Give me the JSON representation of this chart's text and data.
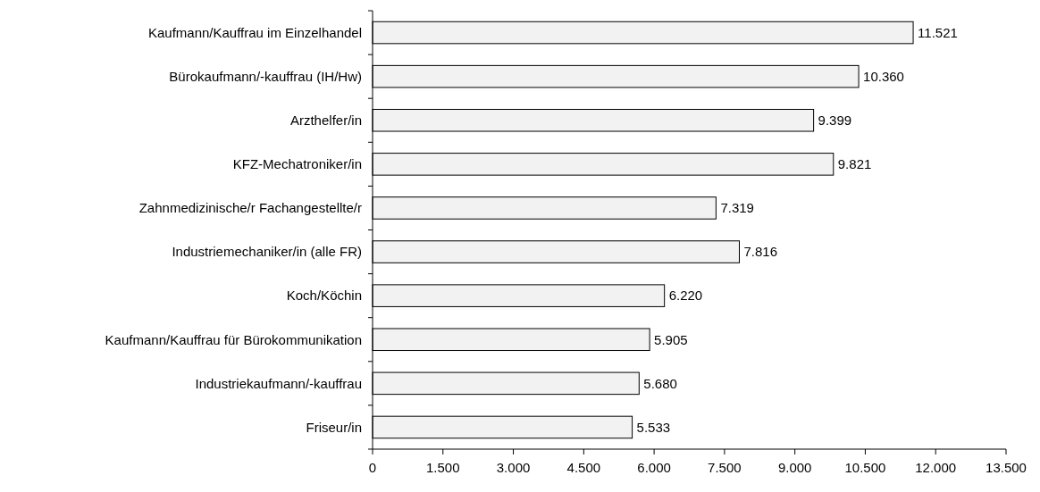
{
  "chart_data": {
    "type": "bar",
    "orientation": "horizontal",
    "categories": [
      "Kaufmann/Kauffrau im Einzelhandel",
      "Bürokaufmann/-kauffrau (IH/Hw)",
      "Arzthelfer/in",
      "KFZ-Mechatroniker/in",
      "Zahnmedizinische/r Fachangestellte/r",
      "Industriemechaniker/in (alle FR)",
      "Koch/Köchin",
      "Kaufmann/Kauffrau für Bürokommunikation",
      "Industriekaufmann/-kauffrau",
      "Friseur/in"
    ],
    "values": [
      11521,
      10360,
      9399,
      9821,
      7319,
      7816,
      6220,
      5905,
      5680,
      5533
    ],
    "value_labels": [
      "11.521",
      "10.360",
      "9.399",
      "9.821",
      "7.319",
      "7.816",
      "6.220",
      "5.905",
      "5.680",
      "5.533"
    ],
    "color": "#f2f2f2",
    "xlim": [
      0,
      13500
    ],
    "xticks": [
      0,
      {
        "value": 1500,
        "label": "1.500"
      },
      {
        "value": 3000,
        "label": "3.000"
      },
      {
        "value": 4500,
        "label": "4.500"
      },
      {
        "value": 6000,
        "label": "6.000"
      },
      {
        "value": 7500,
        "label": "7.500"
      },
      {
        "value": 9000,
        "label": "9.000"
      },
      {
        "value": 10500,
        "label": "10.500"
      },
      {
        "value": 12000,
        "label": "12.000"
      },
      {
        "value": 13500,
        "label": "13.500"
      }
    ],
    "grid": false
  }
}
